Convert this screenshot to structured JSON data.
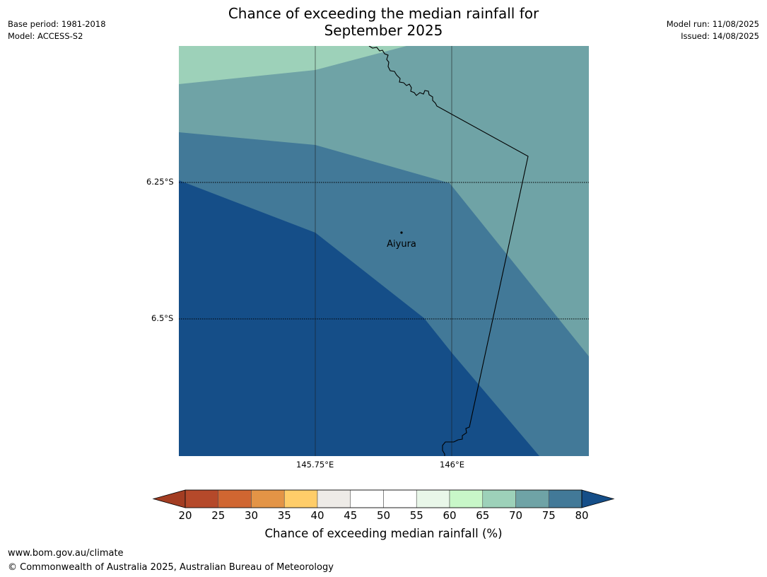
{
  "title_line1": "Chance of exceeding the median rainfall for",
  "title_line2": "September 2025",
  "meta_left": [
    "Base period: 1981-2018",
    "Model: ACCESS-S2"
  ],
  "meta_right": [
    "Model run: 11/08/2025",
    "Issued: 14/08/2025"
  ],
  "map": {
    "lat_labels": [
      "6.25°S",
      "6.5°S"
    ],
    "lon_labels": [
      "145.75°E",
      "146°E"
    ],
    "place": "Aiyura",
    "region_colors": {
      "60-65": "#c8f7c8",
      "65-70": "#9dd1b9",
      "70-75": "#6fa3a6",
      "75-80": "#427998",
      "80+": "#154e88"
    }
  },
  "colorbar": {
    "ticks": [
      "20",
      "25",
      "30",
      "35",
      "40",
      "45",
      "50",
      "55",
      "60",
      "65",
      "70",
      "75",
      "80"
    ],
    "colors": [
      "#a33d22",
      "#b5492a",
      "#d06631",
      "#e39446",
      "#ffcd69",
      "#eeebe7",
      "#ffffff",
      "#ffffff",
      "#e9f7e9",
      "#c8f7c8",
      "#9dd1b9",
      "#6fa3a6",
      "#427998",
      "#154e88"
    ],
    "label": "Chance of exceeding median rainfall (%)"
  },
  "footer": {
    "url": "www.bom.gov.au/climate",
    "copyright": "© Commonwealth of Australia 2025, Australian Bureau of Meteorology"
  }
}
